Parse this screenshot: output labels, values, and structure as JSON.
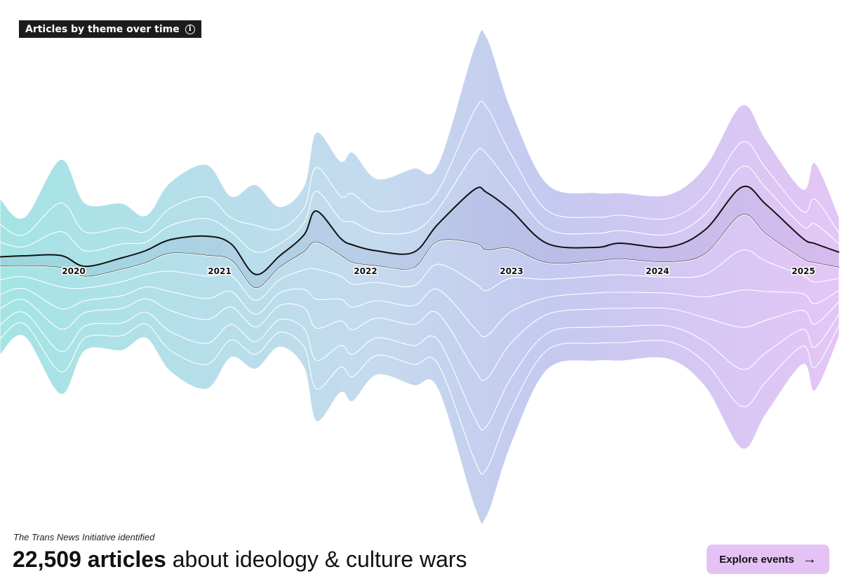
{
  "header": {
    "title": "Articles by theme over time",
    "info_icon": "info-icon"
  },
  "footer": {
    "intro": "The Trans News Initiative identified",
    "count_bold": "22,509 articles",
    "count_rest": " about ideology & culture wars",
    "button_label": "Explore events",
    "button_icon": "arrow-right-icon",
    "button_color": "#e4c2f5"
  },
  "chart_data": {
    "type": "area",
    "subtype": "streamgraph",
    "x_ticks": [
      "2020",
      "2021",
      "2022",
      "2023",
      "2024",
      "2025"
    ],
    "highlighted_series_index": 3,
    "colors": {
      "start": "#a4e4e5",
      "mid1": "#c5daee",
      "mid2": "#c5c9ef",
      "end": "#e4c6f6",
      "divider": "#ffffff",
      "highlight_stroke": "#111111"
    },
    "grid": false,
    "x": [
      "2019-07",
      "2019-09",
      "2019-12",
      "2020-02",
      "2020-05",
      "2020-07",
      "2020-09",
      "2020-12",
      "2021-02",
      "2021-04",
      "2021-06",
      "2021-08",
      "2021-09",
      "2021-11",
      "2021-12",
      "2022-02",
      "2022-05",
      "2022-07",
      "2022-10",
      "2022-11",
      "2023-01",
      "2023-04",
      "2023-08",
      "2023-10",
      "2024-02",
      "2024-05",
      "2024-08",
      "2024-10",
      "2025-01",
      "2025-02",
      "2025-04"
    ],
    "series": [
      {
        "values": [
          37,
          25,
          62,
          41,
          35,
          23,
          37,
          46,
          31,
          58,
          32,
          32,
          50,
          50,
          59,
          46,
          54,
          38,
          91,
          100,
          65,
          38,
          35,
          32,
          34,
          41,
          53,
          41,
          32,
          52,
          23
        ]
      },
      {
        "values": [
          25,
          17,
          41,
          27,
          23,
          15,
          25,
          31,
          20,
          38,
          21,
          21,
          34,
          33,
          40,
          31,
          36,
          26,
          61,
          67,
          44,
          26,
          23,
          22,
          23,
          27,
          35,
          28,
          21,
          35,
          15
        ]
      },
      {
        "values": [
          21,
          13,
          34,
          22,
          20,
          12,
          20,
          25,
          17,
          32,
          17,
          17,
          28,
          27,
          33,
          26,
          30,
          21,
          51,
          55,
          36,
          21,
          20,
          18,
          18,
          22,
          29,
          23,
          17,
          28,
          12
        ]
      },
      {
        "values": [
          14,
          15,
          18,
          15,
          17,
          18,
          20,
          28,
          24,
          20,
          17,
          25,
          45,
          25,
          26,
          22,
          23,
          25,
          77,
          83,
          55,
          28,
          20,
          23,
          22,
          35,
          40,
          43,
          30,
          28,
          22
        ]
      },
      {
        "values": [
          19,
          15,
          27,
          16,
          17,
          16,
          25,
          29,
          21,
          17,
          17,
          25,
          38,
          29,
          30,
          23,
          25,
          32,
          56,
          57,
          42,
          23,
          21,
          22,
          21,
          29,
          50,
          38,
          23,
          27,
          15
        ]
      },
      {
        "values": [
          21,
          17,
          31,
          18,
          20,
          18,
          29,
          32,
          23,
          20,
          19,
          28,
          43,
          33,
          33,
          26,
          28,
          36,
          64,
          65,
          48,
          26,
          24,
          25,
          23,
          32,
          57,
          43,
          26,
          31,
          17
        ]
      },
      {
        "values": [
          20,
          16,
          29,
          17,
          18,
          17,
          27,
          30,
          22,
          18,
          18,
          26,
          41,
          31,
          32,
          25,
          27,
          34,
          60,
          61,
          45,
          24,
          23,
          23,
          22,
          30,
          53,
          41,
          24,
          29,
          16
        ]
      },
      {
        "values": [
          23,
          18,
          32,
          19,
          21,
          19,
          30,
          34,
          25,
          21,
          20,
          30,
          46,
          35,
          35,
          28,
          30,
          38,
          68,
          68,
          50,
          27,
          26,
          26,
          25,
          34,
          60,
          46,
          27,
          33,
          18
        ]
      },
      {
        "values": [
          20,
          16,
          29,
          17,
          18,
          17,
          27,
          30,
          22,
          18,
          18,
          26,
          41,
          31,
          32,
          25,
          27,
          34,
          60,
          61,
          45,
          24,
          23,
          23,
          22,
          30,
          53,
          41,
          24,
          29,
          16
        ]
      },
      {
        "values": [
          23,
          18,
          32,
          18,
          21,
          20,
          30,
          35,
          25,
          21,
          21,
          30,
          46,
          36,
          35,
          28,
          30,
          36,
          67,
          68,
          50,
          28,
          25,
          26,
          25,
          35,
          60,
          46,
          26,
          33,
          16
        ]
      }
    ]
  }
}
